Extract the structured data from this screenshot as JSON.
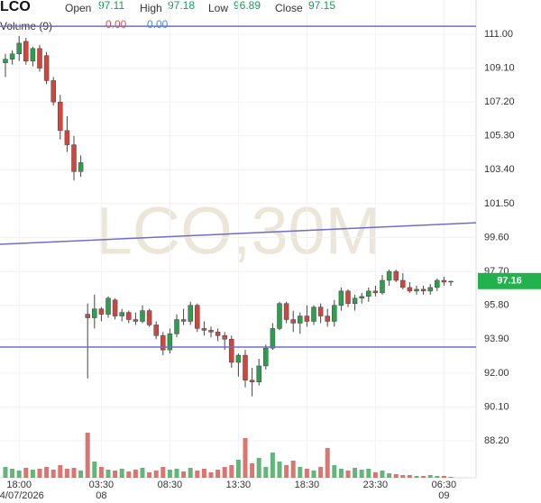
{
  "header": {
    "symbol": "LCO",
    "open_label": "Open",
    "open": 97.11,
    "high_label": "High",
    "high": 97.18,
    "low_label": "Low",
    "low": 96.89,
    "close_label": "Close",
    "close": 97.15,
    "volume_label": "Volume (9)",
    "volume_value": {
      "value": 0,
      "label": "0.00"
    },
    "volume_ma": {
      "value": 0,
      "label": "0.00"
    }
  },
  "chart_data": {
    "type": "candlestick",
    "watermark": "LCO,30M",
    "categories": [
      null,
      null,
      "18:00",
      null,
      null,
      null,
      null,
      null,
      null,
      null,
      null,
      null,
      null,
      null,
      "03:30",
      null,
      null,
      null,
      null,
      null,
      null,
      null,
      null,
      null,
      "08:30",
      null,
      null,
      null,
      null,
      null,
      null,
      null,
      null,
      null,
      "13:30",
      null,
      null,
      null,
      null,
      null,
      null,
      null,
      null,
      null,
      "18:30",
      null,
      null,
      null,
      null,
      null,
      null,
      null,
      null,
      null,
      "23:30",
      null,
      null,
      null,
      null,
      null,
      null,
      null,
      null,
      null,
      "06:30",
      null
    ],
    "date_labels": [
      null,
      null,
      "04/07/2026",
      null,
      null,
      null,
      null,
      null,
      null,
      null,
      null,
      null,
      null,
      null,
      "08",
      null,
      null,
      null,
      null,
      null,
      null,
      null,
      null,
      null,
      null,
      null,
      null,
      null,
      null,
      null,
      null,
      null,
      null,
      null,
      null,
      null,
      null,
      null,
      null,
      null,
      null,
      null,
      null,
      null,
      null,
      null,
      null,
      null,
      null,
      null,
      null,
      null,
      null,
      null,
      null,
      null,
      null,
      null,
      null,
      null,
      null,
      null,
      null,
      null,
      "09",
      null
    ],
    "open": [
      109.4,
      109.6,
      109.9,
      110.6,
      109.5,
      110.2,
      109.8,
      108.4,
      107.2,
      105.6,
      104.8,
      103.3,
      95.3,
      95.1,
      95.6,
      95.3,
      96.1,
      95.2,
      95.4,
      95.0,
      94.9,
      95.5,
      94.7,
      94.1,
      93.3,
      94.2,
      95.0,
      94.9,
      95.8,
      94.5,
      94.4,
      94.3,
      94.1,
      93.9,
      92.6,
      93.0,
      91.6,
      91.5,
      92.4,
      93.4,
      94.5,
      95.9,
      95.0,
      94.8,
      95.2,
      94.9,
      95.7,
      95.2,
      94.9,
      95.8,
      96.6,
      95.9,
      96.2,
      96.3,
      96.6,
      96.5,
      97.2,
      97.7,
      97.2,
      96.8,
      96.6,
      96.7,
      96.6,
      96.8,
      97.2,
      97.11
    ],
    "high": [
      109.9,
      110.1,
      110.9,
      110.8,
      110.3,
      110.4,
      110.0,
      108.6,
      107.6,
      106.4,
      105.3,
      104.2,
      95.9,
      96.4,
      95.7,
      96.3,
      96.2,
      95.6,
      95.5,
      95.4,
      95.8,
      95.6,
      94.9,
      94.3,
      94.5,
      95.3,
      95.6,
      96.0,
      95.9,
      94.9,
      94.6,
      94.5,
      94.3,
      94.1,
      93.1,
      93.3,
      92.3,
      92.8,
      93.6,
      94.8,
      96.0,
      96.0,
      95.5,
      95.4,
      95.8,
      95.8,
      95.9,
      95.6,
      96.1,
      96.8,
      96.7,
      96.4,
      96.5,
      96.8,
      96.9,
      97.5,
      97.8,
      97.8,
      97.6,
      97.1,
      96.9,
      96.9,
      97.0,
      97.3,
      97.4,
      97.18
    ],
    "low": [
      108.6,
      109.3,
      109.5,
      109.3,
      109.2,
      108.9,
      108.2,
      107.0,
      105.1,
      104.4,
      102.8,
      103.0,
      91.7,
      94.5,
      94.9,
      95.1,
      95.0,
      94.9,
      94.8,
      94.7,
      94.8,
      94.6,
      93.9,
      93.0,
      93.1,
      94.0,
      94.7,
      94.7,
      94.3,
      94.1,
      94.0,
      93.8,
      93.3,
      92.3,
      91.8,
      91.2,
      90.7,
      91.3,
      92.2,
      93.3,
      94.4,
      94.8,
      94.3,
      94.2,
      94.6,
      94.7,
      94.8,
      94.6,
      94.6,
      95.5,
      95.7,
      95.5,
      95.9,
      96.0,
      96.3,
      96.4,
      96.9,
      97.1,
      96.7,
      96.5,
      96.4,
      96.4,
      96.4,
      96.6,
      96.9,
      96.89
    ],
    "close": [
      109.6,
      109.9,
      110.5,
      109.5,
      110.2,
      109.1,
      108.4,
      107.2,
      105.6,
      104.8,
      103.3,
      103.8,
      95.1,
      95.6,
      95.3,
      96.2,
      95.2,
      95.4,
      95.0,
      94.9,
      95.5,
      94.7,
      94.1,
      93.3,
      94.2,
      95.0,
      94.9,
      95.8,
      94.5,
      94.4,
      94.3,
      94.1,
      93.9,
      92.6,
      93.0,
      91.6,
      91.5,
      92.4,
      93.4,
      94.5,
      95.9,
      95.0,
      94.8,
      95.2,
      94.9,
      95.7,
      95.2,
      94.9,
      95.8,
      96.6,
      95.9,
      96.2,
      96.3,
      96.6,
      96.5,
      97.2,
      97.7,
      97.2,
      96.8,
      96.6,
      96.7,
      96.6,
      96.8,
      97.2,
      97.1,
      97.15
    ],
    "volume": [
      12,
      10,
      8,
      11,
      9,
      10,
      12,
      9,
      14,
      10,
      11,
      8,
      50,
      18,
      12,
      9,
      8,
      10,
      7,
      9,
      11,
      6,
      8,
      12,
      9,
      10,
      7,
      11,
      8,
      10,
      6,
      9,
      12,
      14,
      20,
      44,
      16,
      22,
      12,
      28,
      18,
      14,
      19,
      12,
      10,
      8,
      12,
      33,
      14,
      10,
      8,
      11,
      9,
      10,
      6,
      8,
      5,
      4,
      3,
      3,
      2,
      2,
      3,
      2,
      2,
      1
    ],
    "volume_lim": [
      0,
      55
    ],
    "up_color": "#2e9e4e",
    "down_color": "#d0463f",
    "ylim": [
      86.13,
      112.92
    ],
    "yticks": [
      {
        "value": 111,
        "label": "111.00"
      },
      {
        "value": 109.1,
        "label": "109.10"
      },
      {
        "value": 107.2,
        "label": "107.20"
      },
      {
        "value": 105.3,
        "label": "105.30"
      },
      {
        "value": 103.4,
        "label": "103.40"
      },
      {
        "value": 101.5,
        "label": "101.50"
      },
      {
        "value": 99.6,
        "label": "99.60"
      },
      {
        "value": 97.7,
        "label": "97.70"
      },
      {
        "value": 95.8,
        "label": "95.80"
      },
      {
        "value": 93.9,
        "label": "93.90"
      },
      {
        "value": 92,
        "label": "92.00"
      },
      {
        "value": 90.1,
        "label": "90.10"
      },
      {
        "value": 88.2,
        "label": "88.20"
      }
    ],
    "last_price": 97.16,
    "last_price_color": "#22b14c",
    "trendlines": [
      {
        "values": [
          111.45,
          111.45
        ],
        "color": "#6e6ec8"
      },
      {
        "values": [
          99.22,
          100.43
        ],
        "color": "#6e6ec8"
      },
      {
        "values": [
          93.46,
          93.46
        ],
        "color": "#6e6ec8"
      }
    ],
    "grid": true
  }
}
